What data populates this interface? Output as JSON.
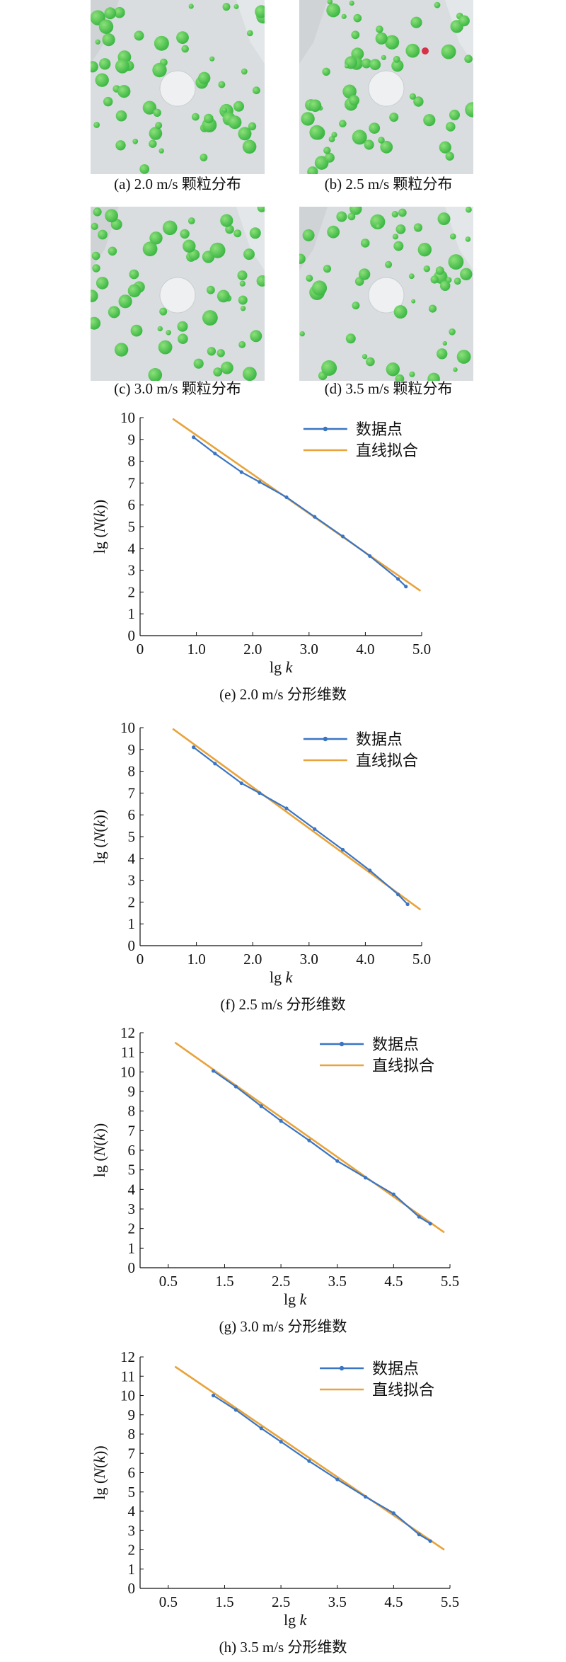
{
  "panels": [
    {
      "caption": "(a) 2.0 m/s 颗粒分布"
    },
    {
      "caption": "(b) 2.5 m/s 颗粒分布"
    },
    {
      "caption": "(c) 3.0 m/s 颗粒分布"
    },
    {
      "caption": "(d) 3.5 m/s 颗粒分布"
    }
  ],
  "colors": {
    "data": "#3a75c4",
    "fit": "#e8a33a",
    "particle": "#3db845",
    "particle_red": "#d6304a",
    "background": "#d9dde0"
  },
  "chart_data": [
    {
      "type": "line",
      "caption": "(e) 2.0 m/s 分形维数",
      "xlabel_main": "lg ",
      "xlabel_var": "k",
      "ylabel_pre": "lg (",
      "ylabel_var": "N",
      "ylabel_mid": "(",
      "ylabel_var2": "k",
      "ylabel_post": "))",
      "xlim": [
        0,
        5
      ],
      "ylim": [
        0,
        10
      ],
      "xticks": [
        0,
        1,
        2,
        3,
        4,
        5
      ],
      "xtick_labels": [
        "0",
        "1.0",
        "2.0",
        "3.0",
        "4.0",
        "5.0"
      ],
      "yticks": [
        0,
        1,
        2,
        3,
        4,
        5,
        6,
        7,
        8,
        9,
        10
      ],
      "ytick_labels": [
        "0",
        "1",
        "2",
        "3",
        "4",
        "5",
        "6",
        "7",
        "8",
        "9",
        "10"
      ],
      "series": [
        {
          "name": "数据点",
          "x": [
            0.95,
            1.33,
            1.8,
            2.12,
            2.6,
            3.1,
            3.6,
            4.08,
            4.58,
            4.72
          ],
          "y": [
            9.1,
            8.35,
            7.5,
            7.05,
            6.35,
            5.45,
            4.55,
            3.65,
            2.6,
            2.25
          ]
        },
        {
          "name": "直线拟合",
          "x": [
            0.58,
            4.98
          ],
          "y": [
            9.95,
            2.05
          ]
        }
      ]
    },
    {
      "type": "line",
      "caption": "(f) 2.5 m/s 分形维数",
      "xlabel_main": "lg ",
      "xlabel_var": "k",
      "ylabel_pre": "lg (",
      "ylabel_var": "N",
      "ylabel_mid": "(",
      "ylabel_var2": "k",
      "ylabel_post": "))",
      "xlim": [
        0,
        5
      ],
      "ylim": [
        0,
        10
      ],
      "xticks": [
        0,
        1,
        2,
        3,
        4,
        5
      ],
      "xtick_labels": [
        "0",
        "1.0",
        "2.0",
        "3.0",
        "4.0",
        "5.0"
      ],
      "yticks": [
        0,
        1,
        2,
        3,
        4,
        5,
        6,
        7,
        8,
        9,
        10
      ],
      "ytick_labels": [
        "0",
        "1",
        "2",
        "3",
        "4",
        "5",
        "6",
        "7",
        "8",
        "9",
        "10"
      ],
      "series": [
        {
          "name": "数据点",
          "x": [
            0.95,
            1.33,
            1.8,
            2.12,
            2.6,
            3.1,
            3.6,
            4.08,
            4.58,
            4.75
          ],
          "y": [
            9.1,
            8.35,
            7.45,
            7.0,
            6.3,
            5.35,
            4.4,
            3.45,
            2.35,
            1.9
          ]
        },
        {
          "name": "直线拟合",
          "x": [
            0.58,
            4.98
          ],
          "y": [
            9.95,
            1.65
          ]
        }
      ]
    },
    {
      "type": "line",
      "caption": "(g) 3.0 m/s 分形维数",
      "xlabel_main": "lg ",
      "xlabel_var": "k",
      "ylabel_pre": "lg (",
      "ylabel_var": "N",
      "ylabel_mid": "(",
      "ylabel_var2": "k",
      "ylabel_post": "))",
      "xlim": [
        0,
        5.5
      ],
      "ylim": [
        0,
        12
      ],
      "xticks": [
        0.5,
        1.5,
        2.5,
        3.5,
        4.5,
        5.5
      ],
      "xtick_labels": [
        "0.5",
        "1.5",
        "2.5",
        "3.5",
        "4.5",
        "5.5"
      ],
      "yticks": [
        0,
        1,
        2,
        3,
        4,
        5,
        6,
        7,
        8,
        9,
        10,
        11,
        12
      ],
      "ytick_labels": [
        "0",
        "1",
        "2",
        "3",
        "4",
        "5",
        "6",
        "7",
        "8",
        "9",
        "10",
        "11",
        "12"
      ],
      "series": [
        {
          "name": "数据点",
          "x": [
            1.3,
            1.7,
            2.15,
            2.5,
            3.0,
            3.5,
            4.0,
            4.5,
            4.95,
            5.15
          ],
          "y": [
            10.05,
            9.25,
            8.25,
            7.5,
            6.5,
            5.45,
            4.6,
            3.75,
            2.6,
            2.25
          ]
        },
        {
          "name": "直线拟合",
          "x": [
            0.62,
            5.4
          ],
          "y": [
            11.5,
            1.8
          ]
        }
      ]
    },
    {
      "type": "line",
      "caption": "(h) 3.5 m/s 分形维数",
      "xlabel_main": "lg ",
      "xlabel_var": "k",
      "ylabel_pre": "lg (",
      "ylabel_var": "N",
      "ylabel_mid": "(",
      "ylabel_var2": "k",
      "ylabel_post": "))",
      "xlim": [
        0,
        5.5
      ],
      "ylim": [
        0,
        12
      ],
      "xticks": [
        0.5,
        1.5,
        2.5,
        3.5,
        4.5,
        5.5
      ],
      "xtick_labels": [
        "0.5",
        "1.5",
        "2.5",
        "3.5",
        "4.5",
        "5.5"
      ],
      "yticks": [
        0,
        1,
        2,
        3,
        4,
        5,
        6,
        7,
        8,
        9,
        10,
        11,
        12
      ],
      "ytick_labels": [
        "0",
        "1",
        "2",
        "3",
        "4",
        "5",
        "6",
        "7",
        "8",
        "9",
        "10",
        "11",
        "12"
      ],
      "series": [
        {
          "name": "数据点",
          "x": [
            1.3,
            1.7,
            2.15,
            2.5,
            3.0,
            3.5,
            4.0,
            4.5,
            4.95,
            5.15
          ],
          "y": [
            10.0,
            9.25,
            8.3,
            7.6,
            6.6,
            5.65,
            4.75,
            3.9,
            2.8,
            2.45
          ]
        },
        {
          "name": "直线拟合",
          "x": [
            0.62,
            5.4
          ],
          "y": [
            11.5,
            2.0
          ]
        }
      ]
    }
  ]
}
